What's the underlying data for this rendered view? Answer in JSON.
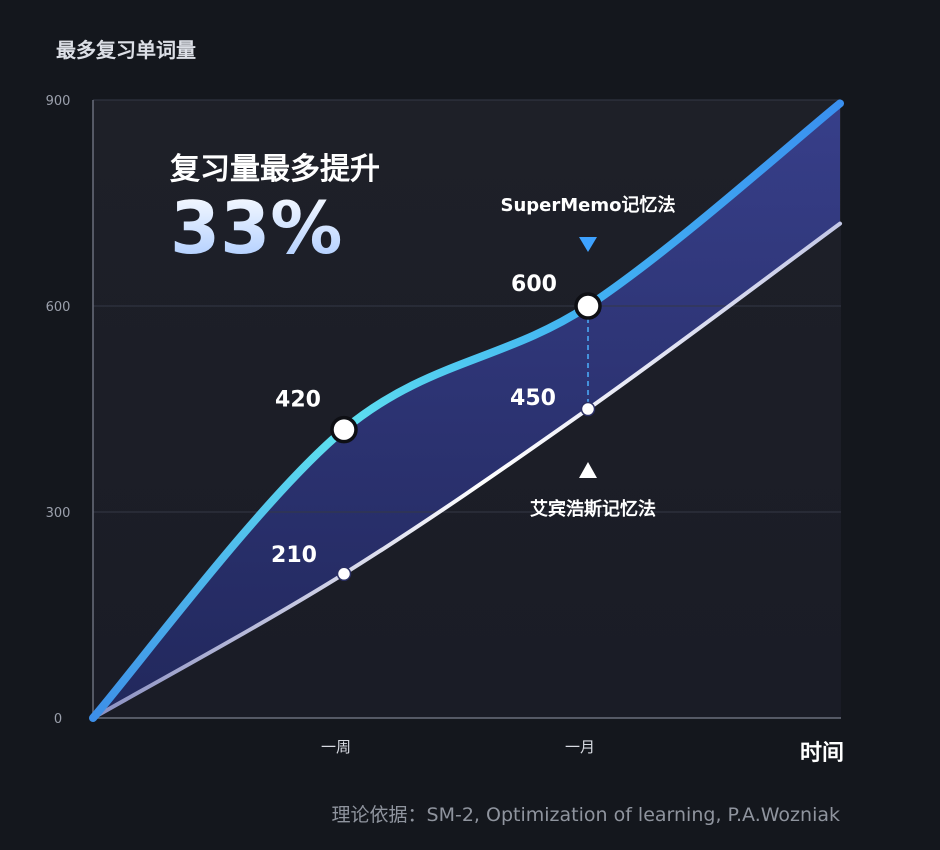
{
  "chart_data": {
    "type": "line",
    "title": "最多复习单词量",
    "headline": "复习量最多提升",
    "headline_value": "33%",
    "xlabel": "时间",
    "ylabel": "",
    "ylim": [
      0,
      900
    ],
    "yticks": [
      0,
      300,
      600,
      900
    ],
    "x_ticks": [
      "一周",
      "一月"
    ],
    "series": [
      {
        "name": "SuperMemo记忆法",
        "color": "#4aa8f5",
        "points": [
          {
            "x": 0,
            "y": 0
          },
          {
            "x": 1,
            "y": 420
          },
          {
            "x": 2,
            "y": 600
          },
          {
            "x": 3,
            "y": 895
          }
        ],
        "point_labels": [
          "420",
          "600"
        ]
      },
      {
        "name": "艾宾浩斯记忆法",
        "color": "#e4e6f2",
        "points": [
          {
            "x": 0,
            "y": 0
          },
          {
            "x": 1,
            "y": 210
          },
          {
            "x": 2,
            "y": 450
          },
          {
            "x": 3,
            "y": 720
          }
        ],
        "point_labels": [
          "210",
          "450"
        ]
      }
    ],
    "source": "理论依据：SM-2, Optimization of learning, P.A.Wozniak",
    "grid": true
  }
}
